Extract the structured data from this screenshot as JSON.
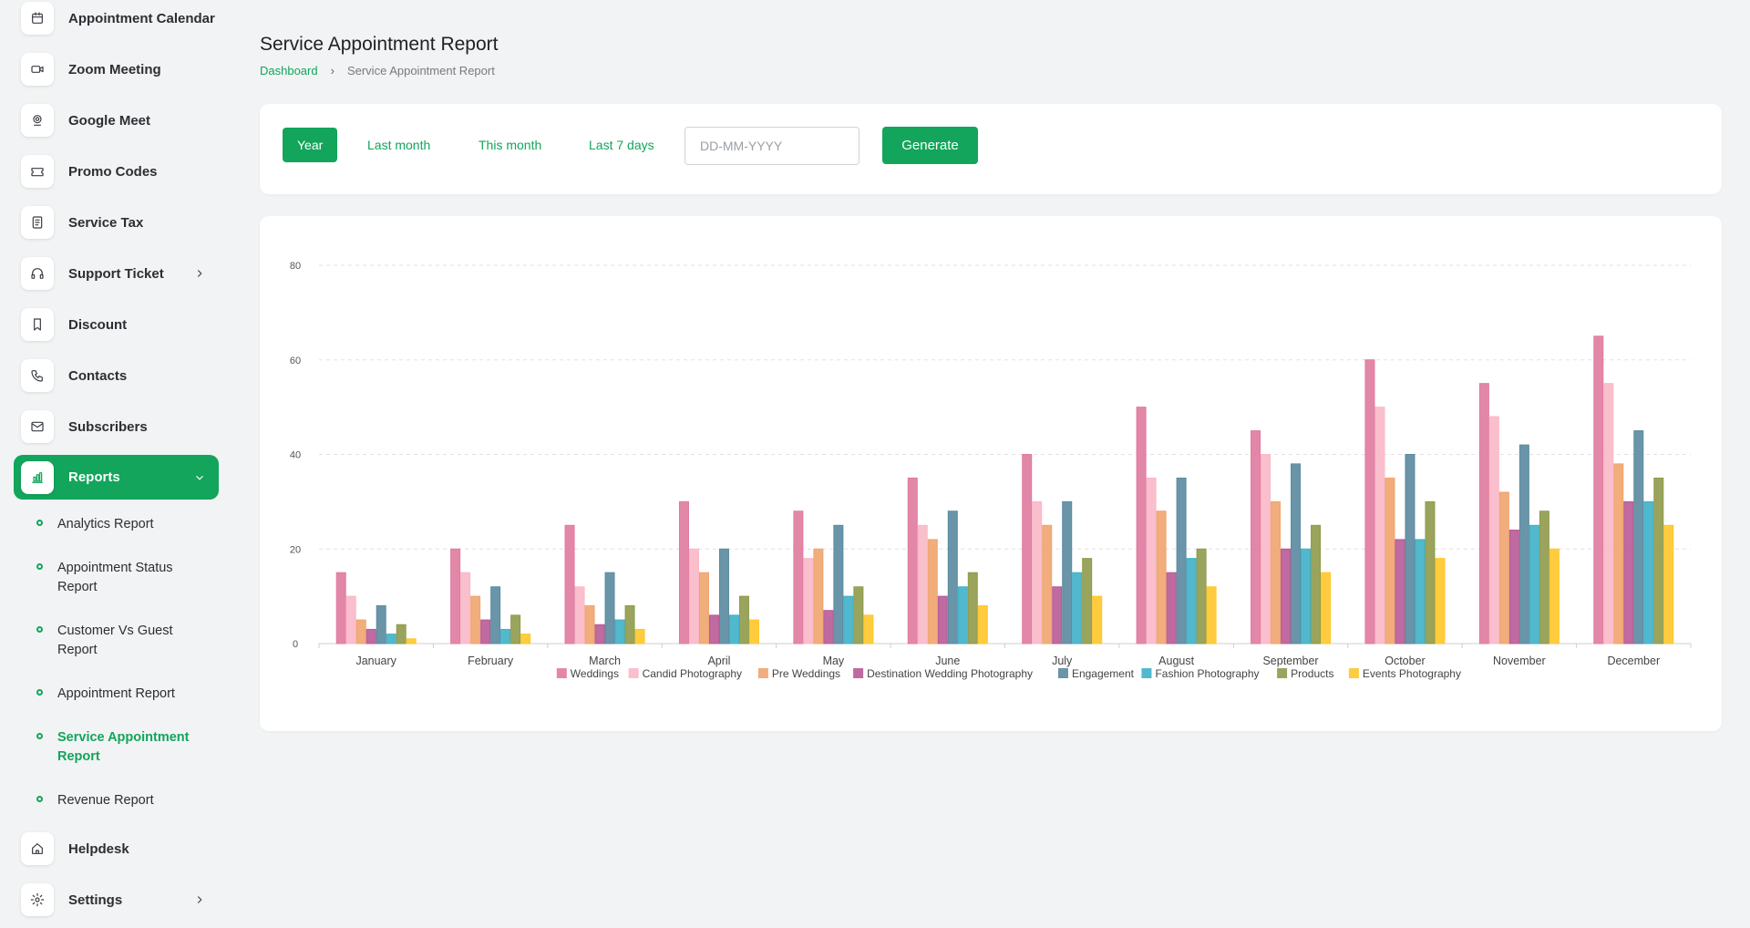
{
  "sidebar": {
    "items": [
      {
        "label": "Appointment Calendar",
        "icon": "calendar-icon"
      },
      {
        "label": "Zoom Meeting",
        "icon": "video-icon"
      },
      {
        "label": "Google Meet",
        "icon": "google-meet-icon"
      },
      {
        "label": "Promo Codes",
        "icon": "ticket-icon"
      },
      {
        "label": "Service Tax",
        "icon": "receipt-icon"
      },
      {
        "label": "Support Ticket",
        "icon": "headphones-icon"
      },
      {
        "label": "Discount",
        "icon": "bookmark-icon"
      },
      {
        "label": "Contacts",
        "icon": "phone-icon"
      },
      {
        "label": "Subscribers",
        "icon": "mail-icon"
      },
      {
        "label": "Reports",
        "icon": "bar-chart-icon"
      },
      {
        "label": "Helpdesk",
        "icon": "home-icon"
      },
      {
        "label": "Settings",
        "icon": "gear-icon"
      }
    ],
    "report_items": [
      "Analytics Report",
      "Appointment Status Report",
      "Customer Vs Guest Report",
      "Appointment Report",
      "Service Appointment Report",
      "Revenue Report"
    ]
  },
  "header": {
    "title": "Service Appointment Report",
    "breadcrumb_home": "Dashboard",
    "breadcrumb_current": "Service Appointment Report"
  },
  "filters": {
    "year": "Year",
    "last_month": "Last month",
    "this_month": "This month",
    "last_7_days": "Last 7 days",
    "date_placeholder": "DD-MM-YYYY",
    "generate": "Generate"
  },
  "colors": {
    "accent": "#12a55b"
  },
  "chart_data": {
    "type": "bar",
    "categories": [
      "January",
      "February",
      "March",
      "April",
      "May",
      "June",
      "July",
      "August",
      "September",
      "October",
      "November",
      "December"
    ],
    "ylim": [
      0,
      80
    ],
    "yticks": [
      0,
      20,
      40,
      60,
      80
    ],
    "grid": true,
    "legend_position": "bottom",
    "series": [
      {
        "name": "Weddings",
        "color": "#e07a9f",
        "values": [
          15,
          20,
          25,
          30,
          28,
          35,
          40,
          50,
          45,
          60,
          55,
          65
        ]
      },
      {
        "name": "Candid Photography",
        "color": "#f9b8c8",
        "values": [
          10,
          15,
          12,
          20,
          18,
          25,
          30,
          35,
          40,
          50,
          48,
          55
        ]
      },
      {
        "name": "Pre Weddings",
        "color": "#f0a46e",
        "values": [
          5,
          10,
          8,
          15,
          20,
          22,
          25,
          28,
          30,
          35,
          32,
          38
        ]
      },
      {
        "name": "Destination Wedding Photography",
        "color": "#b85a96",
        "values": [
          3,
          5,
          4,
          6,
          7,
          10,
          12,
          15,
          20,
          22,
          24,
          30
        ]
      },
      {
        "name": "Engagement",
        "color": "#5a8aa0",
        "values": [
          8,
          12,
          15,
          20,
          25,
          28,
          30,
          35,
          38,
          40,
          42,
          45
        ]
      },
      {
        "name": "Fashion Photography",
        "color": "#3fb0c8",
        "values": [
          2,
          3,
          5,
          6,
          10,
          12,
          15,
          18,
          20,
          22,
          25,
          30
        ]
      },
      {
        "name": "Products",
        "color": "#8f9a4a",
        "values": [
          4,
          6,
          8,
          10,
          12,
          15,
          18,
          20,
          25,
          30,
          28,
          35
        ]
      },
      {
        "name": "Events Photography",
        "color": "#ffc62a",
        "values": [
          1,
          2,
          3,
          5,
          6,
          8,
          10,
          12,
          15,
          18,
          20,
          25
        ]
      }
    ]
  }
}
